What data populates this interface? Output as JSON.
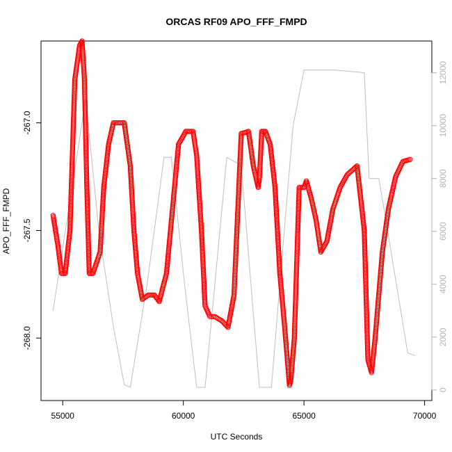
{
  "chart_data": {
    "type": "scatter",
    "title": "ORCAS RF09 APO_FFF_FMPD",
    "xlabel": "UTC Seconds",
    "ylabel": "APO_FFF_FMPD",
    "xlim": [
      54100,
      70300
    ],
    "ylim": [
      -268.29,
      -266.62
    ],
    "y2lim": [
      -400,
      13200
    ],
    "x_ticks": [
      55000,
      60000,
      65000,
      70000
    ],
    "y_ticks": [
      -268.0,
      -267.5,
      -267.0
    ],
    "y_tick_labels": [
      "-268.0",
      "-267.5",
      "-267.0"
    ],
    "y2_ticks": [
      0,
      2000,
      4000,
      6000,
      8000,
      10000,
      12000
    ],
    "colors": {
      "points": "#ff0000",
      "secondary_line": "#bebebe",
      "axis": "#000000",
      "right_axis": "#b3b3b3"
    },
    "grid": false,
    "series": [
      {
        "marker": "open-circle",
        "color": "#ff0000",
        "x": [
          54600,
          54700,
          54800,
          54950,
          55100,
          55300,
          55500,
          55700,
          55800,
          55900,
          56000,
          56100,
          56250,
          56400,
          56550,
          56700,
          56900,
          57100,
          57300,
          57550,
          57800,
          57950,
          58100,
          58300,
          58550,
          58800,
          59000,
          59300,
          59550,
          59800,
          60100,
          60400,
          60550,
          60750,
          60900,
          61100,
          61300,
          61600,
          61850,
          62100,
          62400,
          62700,
          62900,
          63100,
          63150,
          63250,
          63400,
          63600,
          63800,
          64000,
          64200,
          64400,
          64450,
          64600,
          64800,
          65000,
          65100,
          65300,
          65500,
          65700,
          65950,
          66200,
          66500,
          66800,
          67200,
          67500,
          67650,
          67800,
          67950,
          68100,
          68250,
          68500,
          68800,
          69100,
          69400
        ],
        "y": [
          -267.43,
          -267.5,
          -267.57,
          -267.7,
          -267.7,
          -267.5,
          -266.8,
          -266.64,
          -266.62,
          -266.8,
          -267.3,
          -267.7,
          -267.7,
          -267.65,
          -267.6,
          -267.3,
          -267.1,
          -267.0,
          -267.0,
          -267.0,
          -267.2,
          -267.5,
          -267.7,
          -267.82,
          -267.8,
          -267.8,
          -267.83,
          -267.7,
          -267.4,
          -267.1,
          -267.04,
          -267.04,
          -267.15,
          -267.5,
          -267.85,
          -267.9,
          -267.9,
          -267.92,
          -267.95,
          -267.8,
          -267.05,
          -267.04,
          -267.2,
          -267.3,
          -267.26,
          -267.04,
          -267.04,
          -267.1,
          -267.3,
          -267.7,
          -267.95,
          -268.22,
          -268.2,
          -268.0,
          -267.3,
          -267.3,
          -267.27,
          -267.35,
          -267.45,
          -267.6,
          -267.55,
          -267.4,
          -267.3,
          -267.24,
          -267.2,
          -267.5,
          -268.1,
          -268.16,
          -268.0,
          -267.8,
          -267.6,
          -267.4,
          -267.25,
          -267.18,
          -267.17
        ]
      },
      {
        "axis": "right",
        "color": "#bebebe",
        "x": [
          54600,
          55950,
          56500,
          57100,
          57550,
          57800,
          58500,
          59200,
          59500,
          60050,
          60550,
          60900,
          61150,
          61800,
          62400,
          63150,
          63650,
          64000,
          64550,
          65000,
          65250,
          66300,
          67500,
          67700,
          67750,
          68100,
          68200,
          69300,
          69600
        ],
        "y": [
          3000,
          11000,
          6000,
          2400,
          200,
          100,
          4000,
          8800,
          8800,
          4000,
          100,
          100,
          2500,
          8800,
          8500,
          100,
          100,
          4000,
          10000,
          12100,
          12100,
          12100,
          12000,
          8000,
          8000,
          8000,
          7500,
          1400,
          1300
        ]
      }
    ]
  }
}
